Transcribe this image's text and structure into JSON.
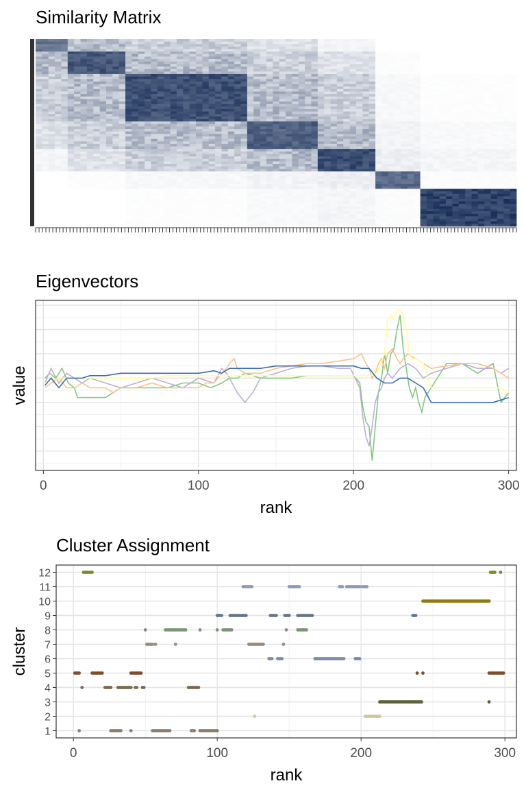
{
  "chart_data": [
    {
      "type": "heatmap",
      "title": "Similarity Matrix",
      "xlabel": "",
      "ylabel": "",
      "grid": false,
      "rows": 300,
      "columns": 300,
      "color_low": "#ffffff",
      "color_high": "#0b2350",
      "blocks": [
        {
          "start": 1,
          "end": 20,
          "strength": 0.7
        },
        {
          "start": 20,
          "end": 55,
          "strength": 0.85
        },
        {
          "start": 55,
          "end": 130,
          "strength": 0.88
        },
        {
          "start": 130,
          "end": 175,
          "strength": 0.8
        },
        {
          "start": 175,
          "end": 212,
          "strength": 0.9
        },
        {
          "start": 212,
          "end": 240,
          "strength": 0.75
        },
        {
          "start": 240,
          "end": 300,
          "strength": 0.95
        }
      ]
    },
    {
      "type": "line",
      "title": "Eigenvectors",
      "xlabel": "rank",
      "ylabel": "value",
      "xlim": [
        -5,
        305
      ],
      "ylim": [
        -0.19,
        0.16
      ],
      "xticks": [
        0,
        100,
        200,
        300
      ],
      "grid": true,
      "legend": "none",
      "series": [
        {
          "color": "#7fc97f",
          "x": [
            1,
            4,
            8,
            12,
            16,
            20,
            22,
            30,
            40,
            50,
            60,
            70,
            80,
            90,
            100,
            108,
            115,
            120,
            125,
            130,
            140,
            150,
            160,
            170,
            180,
            190,
            200,
            204,
            206,
            208,
            210,
            212,
            214,
            216,
            218,
            220,
            222,
            224,
            226,
            228,
            230,
            232,
            234,
            236,
            238,
            240,
            242,
            244,
            246,
            250,
            260,
            270,
            280,
            290,
            295,
            300
          ],
          "y": [
            0.0,
            0.01,
            0.0,
            0.02,
            -0.01,
            -0.02,
            -0.04,
            -0.04,
            -0.04,
            -0.02,
            -0.02,
            -0.02,
            -0.02,
            -0.01,
            -0.01,
            -0.02,
            -0.01,
            0.0,
            0.0,
            0.01,
            0.0,
            0.0,
            0.0,
            0.005,
            0.005,
            0.005,
            0.005,
            -0.01,
            -0.06,
            -0.09,
            -0.1,
            -0.17,
            -0.1,
            -0.03,
            0.0,
            0.05,
            0.01,
            0.05,
            0.06,
            0.1,
            0.13,
            0.06,
            0.02,
            -0.02,
            -0.04,
            -0.02,
            -0.05,
            -0.07,
            -0.04,
            -0.02,
            0.03,
            0.03,
            0.01,
            0.03,
            -0.05,
            -0.03
          ]
        },
        {
          "color": "#beaed4",
          "x": [
            1,
            5,
            10,
            15,
            20,
            25,
            30,
            40,
            50,
            60,
            70,
            80,
            90,
            100,
            110,
            115,
            118,
            120,
            125,
            130,
            135,
            140,
            150,
            160,
            170,
            180,
            190,
            198,
            204,
            206,
            208,
            210,
            212,
            214,
            216,
            218,
            220,
            222,
            225,
            230,
            235,
            240,
            245,
            250,
            260,
            270,
            280,
            290,
            295,
            300
          ],
          "y": [
            -0.01,
            0.02,
            -0.01,
            0.01,
            0.0,
            -0.01,
            0.0,
            -0.01,
            -0.02,
            -0.01,
            0.0,
            -0.01,
            -0.02,
            0.0,
            -0.01,
            0.02,
            0.01,
            0.0,
            -0.03,
            -0.05,
            -0.03,
            0.0,
            0.01,
            0.02,
            0.025,
            0.025,
            0.02,
            0.02,
            -0.02,
            -0.08,
            -0.12,
            -0.14,
            -0.1,
            -0.05,
            -0.03,
            -0.02,
            0.0,
            0.01,
            0.0,
            0.02,
            0.03,
            0.02,
            0.0,
            0.01,
            0.02,
            0.03,
            0.02,
            0.02,
            0.01,
            0.02
          ]
        },
        {
          "color": "#fdc086",
          "x": [
            1,
            5,
            10,
            15,
            20,
            25,
            30,
            40,
            45,
            50,
            60,
            70,
            80,
            90,
            100,
            105,
            110,
            115,
            118,
            120,
            123,
            125,
            130,
            140,
            150,
            160,
            170,
            180,
            190,
            200,
            205,
            208,
            210,
            212,
            214,
            216,
            218,
            220,
            222,
            225,
            228,
            230,
            232,
            235,
            240,
            245,
            250,
            260,
            270,
            280,
            290,
            295,
            300
          ],
          "y": [
            -0.02,
            -0.01,
            0.0,
            -0.02,
            -0.02,
            -0.01,
            -0.02,
            -0.02,
            -0.03,
            -0.02,
            -0.02,
            -0.01,
            -0.02,
            -0.02,
            -0.02,
            -0.01,
            -0.01,
            0.01,
            0.02,
            0.03,
            0.04,
            0.02,
            0.01,
            0.01,
            0.02,
            0.025,
            0.03,
            0.03,
            0.035,
            0.04,
            0.05,
            0.03,
            0.02,
            0.0,
            0.01,
            0.03,
            0.04,
            0.02,
            0.05,
            0.06,
            0.04,
            0.03,
            0.04,
            0.05,
            0.04,
            0.03,
            0.02,
            0.025,
            0.03,
            0.03,
            0.02,
            0.01,
            0.0
          ]
        },
        {
          "color": "#ffff99",
          "x": [
            1,
            10,
            20,
            30,
            40,
            50,
            60,
            70,
            80,
            90,
            100,
            110,
            120,
            130,
            140,
            150,
            160,
            170,
            180,
            190,
            200,
            205,
            210,
            215,
            220,
            222,
            224,
            226,
            228,
            230,
            232,
            234,
            236,
            238,
            240,
            245,
            250,
            255,
            260,
            270,
            280,
            290,
            295,
            300
          ],
          "y": [
            -0.01,
            0.0,
            0.0,
            0.0,
            0.0,
            0.0,
            0.0,
            0.0,
            0.005,
            0.005,
            0.005,
            0.005,
            0.005,
            0.005,
            0.005,
            0.005,
            0.005,
            0.005,
            0.005,
            0.005,
            0.005,
            0.005,
            0.005,
            0.01,
            0.05,
            0.12,
            0.13,
            0.12,
            0.14,
            0.14,
            0.13,
            0.1,
            0.05,
            0.04,
            0.04,
            0.03,
            -0.02,
            -0.02,
            -0.02,
            -0.02,
            -0.02,
            -0.02,
            -0.02,
            -0.03
          ]
        },
        {
          "color": "#386cb0",
          "x": [
            1,
            5,
            10,
            15,
            20,
            25,
            30,
            40,
            50,
            60,
            70,
            80,
            90,
            100,
            110,
            115,
            120,
            125,
            130,
            140,
            150,
            160,
            170,
            180,
            190,
            200,
            205,
            210,
            215,
            220,
            225,
            230,
            235,
            240,
            245,
            250,
            260,
            270,
            280,
            290,
            295,
            300
          ],
          "y": [
            -0.015,
            0.0,
            -0.02,
            0.0,
            0.0,
            0.0,
            0.005,
            0.005,
            0.01,
            0.01,
            0.01,
            0.01,
            0.01,
            0.01,
            0.015,
            0.01,
            0.02,
            0.02,
            0.02,
            0.02,
            0.025,
            0.025,
            0.025,
            0.025,
            0.025,
            0.025,
            0.02,
            0.02,
            0.0,
            -0.01,
            -0.01,
            0.0,
            0.0,
            -0.01,
            -0.02,
            -0.05,
            -0.05,
            -0.05,
            -0.05,
            -0.05,
            -0.045,
            -0.04
          ]
        }
      ]
    },
    {
      "type": "scatter",
      "title": "Cluster Assignment",
      "xlabel": "rank",
      "ylabel": "cluster",
      "xlim": [
        -12,
        308
      ],
      "ylim": [
        0.5,
        12.5
      ],
      "xticks": [
        0,
        100,
        200,
        300
      ],
      "yticks": [
        1,
        2,
        3,
        4,
        5,
        6,
        7,
        8,
        9,
        10,
        11,
        12
      ],
      "grid": true,
      "legend": "none",
      "clusters": [
        {
          "cluster": 1,
          "color": "#8c7b6b",
          "ranges": [
            [
              4,
              4
            ],
            [
              26,
              33
            ],
            [
              40,
              40
            ],
            [
              55,
              67
            ],
            [
              82,
              84
            ],
            [
              88,
              100
            ]
          ]
        },
        {
          "cluster": 2,
          "color": "#c9c89e",
          "ranges": [
            [
              126,
              126
            ],
            [
              203,
              213
            ]
          ]
        },
        {
          "cluster": 3,
          "color": "#5b6438",
          "ranges": [
            [
              213,
              242
            ],
            [
              289,
              289
            ]
          ]
        },
        {
          "cluster": 4,
          "color": "#7a6a4e",
          "ranges": [
            [
              6,
              6
            ],
            [
              22,
              26
            ],
            [
              31,
              40
            ],
            [
              43,
              44
            ],
            [
              48,
              49
            ],
            [
              80,
              87
            ]
          ]
        },
        {
          "cluster": 5,
          "color": "#7b4f2e",
          "ranges": [
            [
              1,
              4
            ],
            [
              13,
              20
            ],
            [
              40,
              47
            ],
            [
              239,
              239
            ],
            [
              243,
              243
            ],
            [
              289,
              299
            ]
          ]
        },
        {
          "cluster": 6,
          "color": "#7a8aa8",
          "ranges": [
            [
              136,
              138
            ],
            [
              142,
              145
            ],
            [
              168,
              188
            ],
            [
              196,
              199
            ]
          ]
        },
        {
          "cluster": 7,
          "color": "#9a8b7c",
          "ranges": [
            [
              51,
              55
            ],
            [
              57,
              57
            ],
            [
              71,
              71
            ],
            [
              122,
              132
            ],
            [
              146,
              146
            ]
          ]
        },
        {
          "cluster": 8,
          "color": "#7e937a",
          "ranges": [
            [
              50,
              50
            ],
            [
              64,
              78
            ],
            [
              88,
              88
            ],
            [
              100,
              100
            ],
            [
              104,
              110
            ],
            [
              148,
              148
            ],
            [
              156,
              162
            ]
          ]
        },
        {
          "cluster": 9,
          "color": "#66758e",
          "ranges": [
            [
              100,
              103
            ],
            [
              109,
              120
            ],
            [
              137,
              141
            ],
            [
              147,
              150
            ],
            [
              156,
              166
            ],
            [
              236,
              238
            ]
          ]
        },
        {
          "cluster": 10,
          "color": "#8f7a12",
          "ranges": [
            [
              243,
              289
            ]
          ]
        },
        {
          "cluster": 11,
          "color": "#8a9ab5",
          "ranges": [
            [
              118,
              124
            ],
            [
              150,
              157
            ],
            [
              185,
              187
            ],
            [
              190,
              199
            ],
            [
              201,
              204
            ]
          ]
        },
        {
          "cluster": 12,
          "color": "#7a8a28",
          "ranges": [
            [
              7,
              13
            ],
            [
              290,
              293
            ],
            [
              297,
              297
            ]
          ]
        }
      ]
    }
  ]
}
